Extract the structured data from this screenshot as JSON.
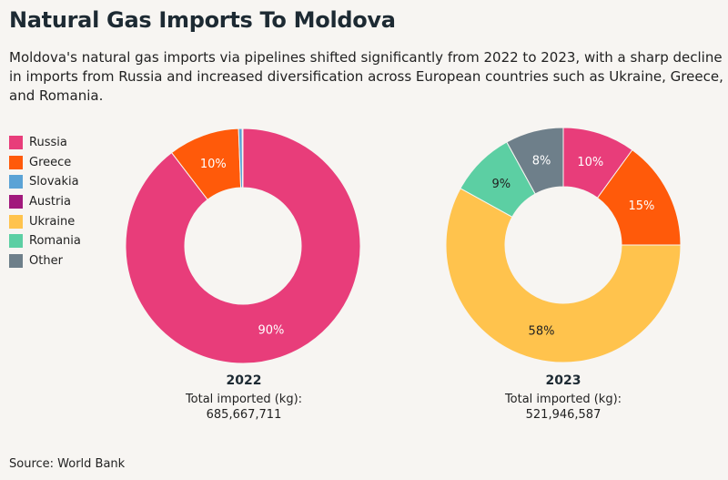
{
  "title": "Natural Gas Imports To Moldova",
  "subtitle": "Moldova's natural gas imports via pipelines shifted significantly from 2022 to 2023, with a sharp decline in imports from Russia and increased diversification across European countries such as Ukraine, Greece, and Romania.",
  "source": "Source: World Bank",
  "colors": {
    "Russia": "#e83d7a",
    "Greece": "#ff5a0a",
    "Slovakia": "#5ba3d6",
    "Austria": "#a1197c",
    "Ukraine": "#ffc34d",
    "Romania": "#5ccfa3",
    "Other": "#6e7f8a"
  },
  "legend": [
    "Russia",
    "Greece",
    "Slovakia",
    "Austria",
    "Ukraine",
    "Romania",
    "Other"
  ],
  "chart_data": [
    {
      "type": "pie",
      "year": "2022",
      "total_label": "Total imported (kg):",
      "total_value": "685,667,711",
      "slices": [
        {
          "name": "Russia",
          "value": 89.6,
          "label": "90%"
        },
        {
          "name": "Greece",
          "value": 9.8,
          "label": "10%"
        },
        {
          "name": "Slovakia",
          "value": 0.5,
          "label": ""
        },
        {
          "name": "Austria",
          "value": 0.1,
          "label": ""
        }
      ]
    },
    {
      "type": "pie",
      "year": "2023",
      "total_label": "Total imported (kg):",
      "total_value": "521,946,587",
      "slices": [
        {
          "name": "Russia",
          "value": 10,
          "label": "10%"
        },
        {
          "name": "Greece",
          "value": 15,
          "label": "15%"
        },
        {
          "name": "Ukraine",
          "value": 58,
          "label": "58%"
        },
        {
          "name": "Romania",
          "value": 9,
          "label": "9%"
        },
        {
          "name": "Other",
          "value": 8,
          "label": "8%"
        }
      ]
    }
  ]
}
